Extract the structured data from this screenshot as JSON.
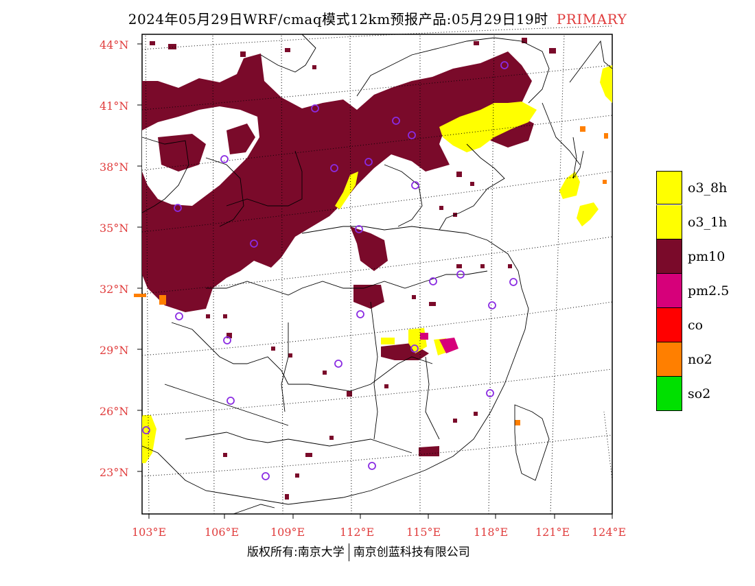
{
  "title": {
    "main": "2024年05月29日WRF/cmaq模式12km预报产品:05月29日19时",
    "tag": "PRIMARY"
  },
  "axes": {
    "lat_labels": [
      "44°N",
      "41°N",
      "38°N",
      "35°N",
      "32°N",
      "29°N",
      "26°N",
      "23°N"
    ],
    "lon_labels": [
      "103°E",
      "106°E",
      "109°E",
      "112°E",
      "115°E",
      "118°E",
      "121°E",
      "124°E"
    ],
    "label_color": "#e03c3c"
  },
  "legend": [
    {
      "label": "o3_8h",
      "color": "#ffff00"
    },
    {
      "label": "o3_1h",
      "color": "#ffff00"
    },
    {
      "label": "pm10",
      "color": "#7a0a2a"
    },
    {
      "label": "pm2.5",
      "color": "#d6007a"
    },
    {
      "label": "co",
      "color": "#ff0000"
    },
    {
      "label": "no2",
      "color": "#ff7f00"
    },
    {
      "label": "so2",
      "color": "#00e000"
    }
  ],
  "footer": {
    "left": "版权所有:南京大学",
    "right": "南京创蓝科技有限公司"
  }
}
